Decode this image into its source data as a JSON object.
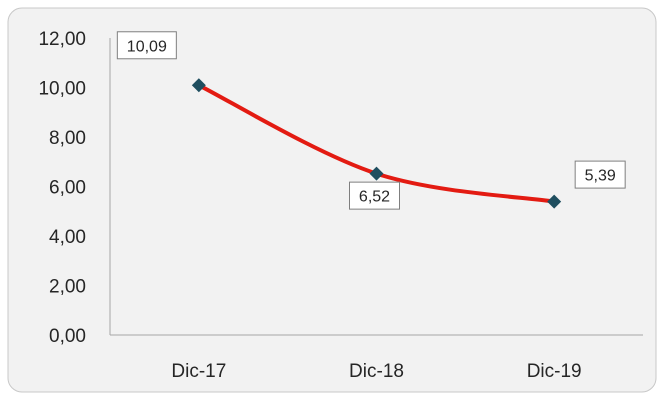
{
  "chart_data": {
    "type": "line",
    "title": "",
    "xlabel": "",
    "ylabel": "",
    "categories": [
      "Dic-17",
      "Dic-18",
      "Dic-19"
    ],
    "series": [
      {
        "values": [
          10.09,
          6.52,
          5.39
        ]
      }
    ],
    "data_labels": [
      "10,09",
      "6,52",
      "5,39"
    ],
    "y_ticks": [
      "0,00",
      "2,00",
      "4,00",
      "6,00",
      "8,00",
      "10,00",
      "12,00"
    ],
    "ylim": [
      0,
      12
    ],
    "grid": false,
    "legend": "none",
    "smooth_line": true,
    "colors": {
      "line": "#e31b12",
      "marker": "#1f4e5f",
      "axis": "#a6a6a6",
      "plot_background": "#f2f2f2",
      "label_border": "#7f7f7f"
    }
  }
}
